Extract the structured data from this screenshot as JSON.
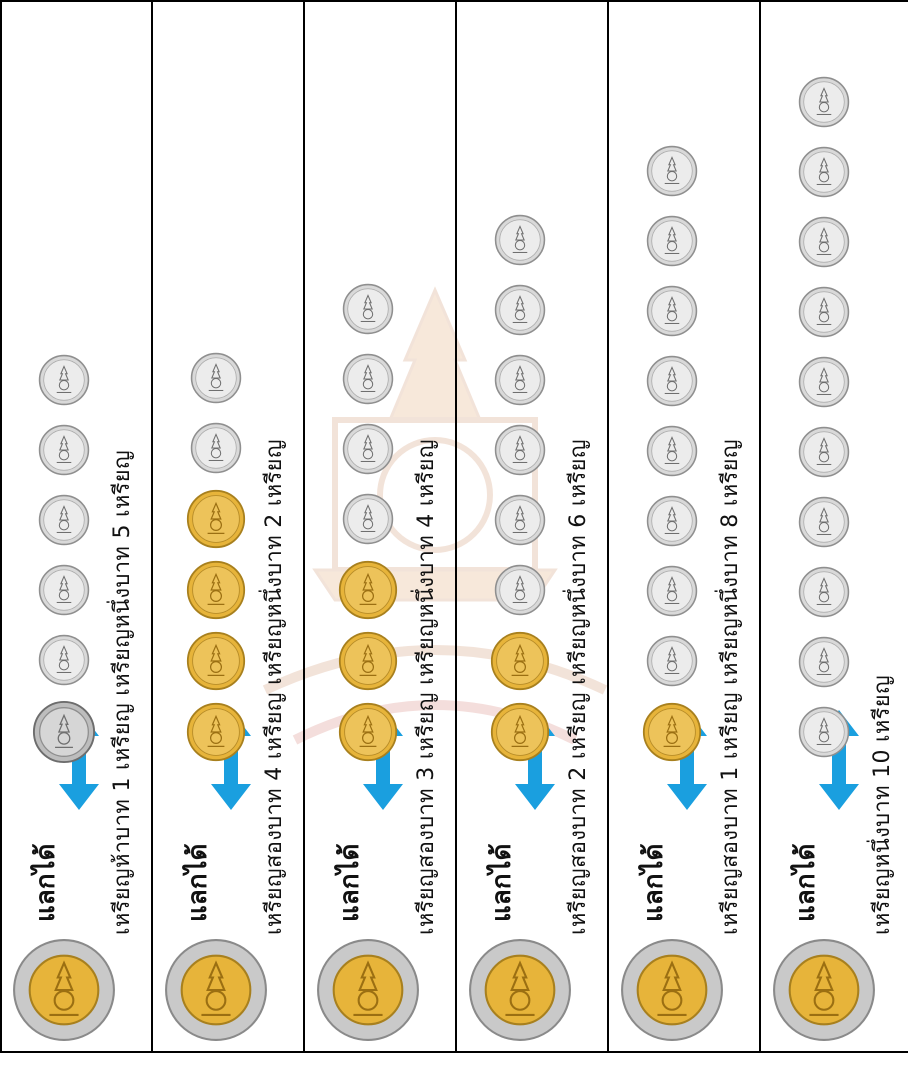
{
  "exchange_label": "แลกได้",
  "colors": {
    "arrow": "#1a9fdf",
    "gold": "#e7b43a",
    "silver": "#d9d9d9",
    "outline": "#000000"
  },
  "icons": {
    "ten_baht": "ten-baht-coin-icon",
    "five_baht": "five-baht-coin-icon",
    "two_baht": "two-baht-coin-icon",
    "one_baht": "one-baht-coin-icon",
    "arrow": "double-arrow-icon"
  },
  "rows": [
    {
      "label": "เหรียญห้าบาท 1 เหรียญ เหรียญหนึ่งบาท 5 เหรียญ",
      "coins": [
        "five",
        "one",
        "one",
        "one",
        "one",
        "one"
      ]
    },
    {
      "label": "เหรียญสองบาท 4 เหรียญ เหรียญหนึ่งบาท 2 เหรียญ",
      "coins": [
        "two",
        "two",
        "two",
        "two",
        "one",
        "one"
      ]
    },
    {
      "label": "เหรียญสองบาท 3 เหรียญ เหรียญหนึ่งบาท 4 เหรียญ",
      "coins": [
        "two",
        "two",
        "two",
        "one",
        "one",
        "one",
        "one"
      ]
    },
    {
      "label": "เหรียญสองบาท 2 เหรียญ เหรียญหนึ่งบาท 6 เหรียญ",
      "coins": [
        "two",
        "two",
        "one",
        "one",
        "one",
        "one",
        "one",
        "one"
      ]
    },
    {
      "label": "เหรียญสองบาท 1 เหรียญ เหรียญหนึ่งบาท 8 เหรียญ",
      "coins": [
        "two",
        "one",
        "one",
        "one",
        "one",
        "one",
        "one",
        "one",
        "one"
      ]
    },
    {
      "label": "เหรียญหนึ่งบาท 10 เหรียญ",
      "coins": [
        "one",
        "one",
        "one",
        "one",
        "one",
        "one",
        "one",
        "one",
        "one",
        "one"
      ]
    }
  ]
}
